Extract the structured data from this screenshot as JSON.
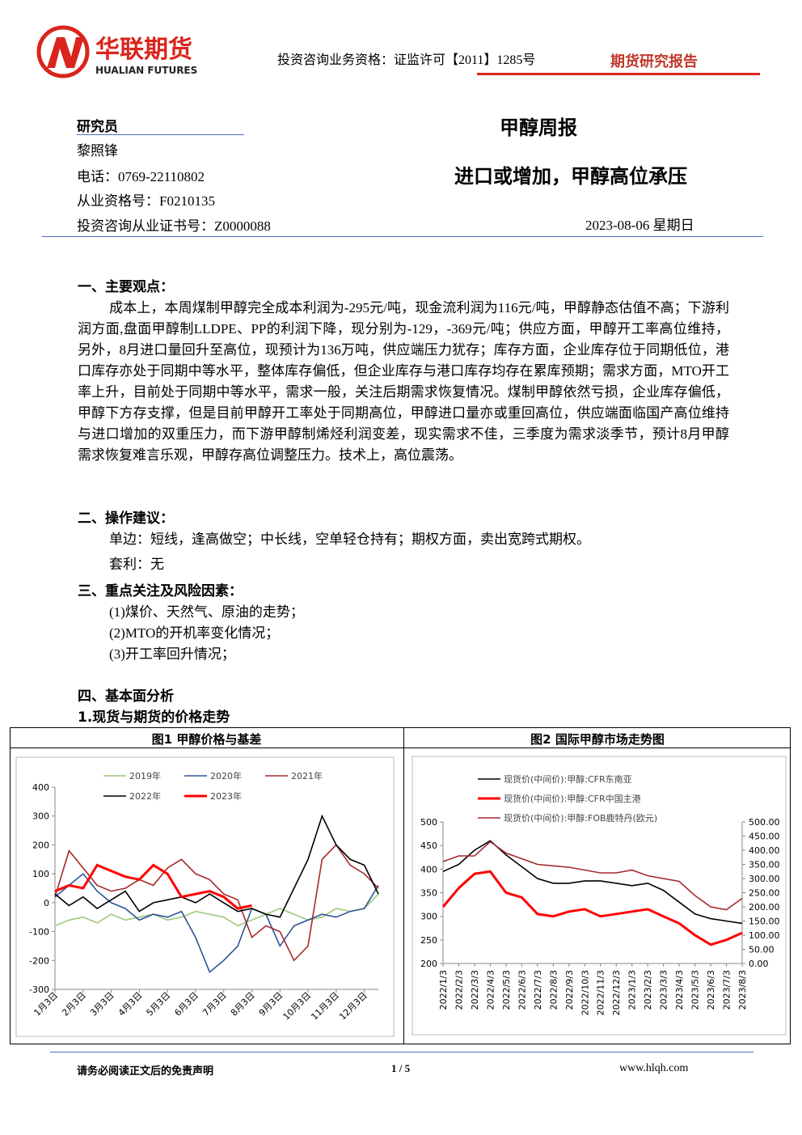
{
  "header": {
    "company": "华联期货",
    "company_en": "HUALIAN FUTURES",
    "license": "投资咨询业务资格：证监许可【2011】1285号",
    "report_type": "期货研究报告"
  },
  "researcher": {
    "heading": "研究员",
    "name": "黎照锋",
    "phone": "电话：0769-22110802",
    "qualification": "从业资格号：F0210135",
    "certificate": "投资咨询从业证书号：Z0000088"
  },
  "title": "甲醇周报",
  "subtitle": "进口或增加，甲醇高位承压",
  "date": "2023-08-06 星期日",
  "sections": [
    {
      "heading": "一、主要观点：",
      "paragraphs": [
        "成本上，本周煤制甲醇完全成本利润为-295元/吨，现金流利润为116元/吨，甲醇静态估值不高；下游利润方面,盘面甲醇制LLDPE、PP的利润下降，现分别为-129，-369元/吨；供应方面，甲醇开工率高位维持，另外，8月进口量回升至高位，现预计为136万吨，供应端压力犹存；库存方面，企业库存位于同期低位，港口库存亦处于同期中等水平，整体库存偏低，但企业库存与港口库存均存在累库预期；需求方面，MTO开工率上升，目前处于同期中等水平，需求一般，关注后期需求恢复情况。煤制甲醇依然亏损，企业库存偏低，甲醇下方存支撑，但是目前甲醇开工率处于同期高位，甲醇进口量亦或重回高位，供应端面临国产高位维持与进口增加的双重压力，而下游甲醇制烯烃利润变差，现实需求不佳，三季度为需求淡季节，预计8月甲醇需求恢复难言乐观，甲醇存高位调整压力。技术上，高位震荡。"
      ]
    },
    {
      "heading": "二、操作建议：",
      "paragraphs": [
        "单边：短线，逢高做空；中长线，空单轻仓持有；期权方面，卖出宽跨式期权。",
        "套利：无"
      ]
    },
    {
      "heading": "三、重点关注及风险因素：",
      "paragraphs": [
        "(1)煤价、天然气、原油的走势；",
        "(2)MTO的开机率变化情况；",
        "(3)开工率回升情况；"
      ]
    },
    {
      "heading": "四、基本面分析",
      "paragraphs": [
        "1.现货与期货的价格走势"
      ]
    }
  ],
  "chart_data": [
    {
      "type": "line",
      "title": "图1 甲醇价格与基差",
      "categories": [
        "1月3日",
        null,
        "2月3日",
        null,
        "3月3日",
        null,
        "4月3日",
        null,
        "5月3日",
        null,
        "6月3日",
        null,
        "7月3日",
        null,
        "8月3日",
        null,
        "9月3日",
        null,
        "10月3日",
        null,
        "11月3日",
        null,
        "12月3日",
        null
      ],
      "ylim": [
        -300,
        400
      ],
      "yticks": [
        -300,
        -200,
        -100,
        0,
        100,
        200,
        300,
        400
      ],
      "series": [
        {
          "name": "2019年",
          "color": "#9cc97e",
          "values": [
            -80,
            -60,
            -50,
            -70,
            -40,
            -60,
            -50,
            -40,
            -60,
            -50,
            -30,
            -40,
            -50,
            -80,
            -60,
            -40,
            -20,
            -40,
            -60,
            -50,
            -20,
            -30,
            -20,
            30
          ]
        },
        {
          "name": "2020年",
          "color": "#2f5597",
          "values": [
            20,
            60,
            100,
            40,
            0,
            -20,
            -60,
            -40,
            -50,
            -30,
            -120,
            -240,
            -200,
            -150,
            -20,
            -40,
            -150,
            -80,
            -60,
            -40,
            -50,
            -30,
            -20,
            60
          ]
        },
        {
          "name": "2021年",
          "color": "#a52a2a",
          "values": [
            20,
            180,
            120,
            60,
            40,
            50,
            80,
            60,
            120,
            150,
            100,
            80,
            30,
            10,
            -120,
            -80,
            -100,
            -200,
            -150,
            150,
            200,
            130,
            100,
            50
          ]
        },
        {
          "name": "2022年",
          "color": "#000000",
          "values": [
            30,
            -10,
            20,
            -20,
            10,
            40,
            -30,
            0,
            10,
            20,
            0,
            30,
            0,
            -30,
            -20,
            -40,
            -50,
            50,
            150,
            300,
            200,
            150,
            130,
            30
          ]
        },
        {
          "name": "2023年",
          "color": "#ff0000",
          "values": [
            40,
            60,
            50,
            130,
            110,
            90,
            80,
            130,
            100,
            20,
            30,
            40,
            20,
            -20,
            -10,
            null,
            null,
            null,
            null,
            null,
            null,
            null,
            null,
            null
          ]
        }
      ]
    },
    {
      "type": "line",
      "title": "图2 国际甲醇市场走势图",
      "categories": [
        "2022/1/3",
        "2022/2/3",
        "2022/3/3",
        "2022/4/3",
        "2022/5/3",
        "2022/6/3",
        "2022/7/3",
        "2022/8/3",
        "2022/9/3",
        "2022/10/3",
        "2022/11/3",
        "2022/12/3",
        "2023/1/3",
        "2023/2/3",
        "2023/3/3",
        "2023/4/3",
        "2023/5/3",
        "2023/6/3",
        "2023/7/3",
        "2023/8/3"
      ],
      "ylim": [
        200,
        500
      ],
      "yticks": [
        200,
        250,
        300,
        350,
        400,
        450,
        500
      ],
      "y2lim": [
        0,
        500
      ],
      "y2ticks": [
        {
          "value": 0,
          "label": "0.00"
        },
        {
          "value": 50,
          "label": "50.00"
        },
        {
          "value": 100,
          "label": "100.00"
        },
        {
          "value": 150,
          "label": "150.00"
        },
        {
          "value": 200,
          "label": "200.00"
        },
        {
          "value": 250,
          "label": "250.00"
        },
        {
          "value": 300,
          "label": "300.00"
        },
        {
          "value": 350,
          "label": "350.00"
        },
        {
          "value": 400,
          "label": "400.00"
        },
        {
          "value": 450,
          "label": "450.00"
        },
        {
          "value": 500,
          "label": "500.00"
        }
      ],
      "series": [
        {
          "name": "现货价(中间价):甲醇:CFR东南亚",
          "color": "#000000",
          "values": [
            395,
            410,
            440,
            460,
            430,
            405,
            380,
            370,
            370,
            375,
            375,
            370,
            365,
            370,
            355,
            330,
            305,
            295,
            290,
            285
          ]
        },
        {
          "name": "现货价(中间价):甲醇:CFR中国主港",
          "color": "#ff0000",
          "values": [
            320,
            360,
            390,
            395,
            350,
            340,
            305,
            300,
            310,
            315,
            300,
            305,
            310,
            315,
            300,
            285,
            260,
            240,
            250,
            265
          ]
        },
        {
          "name": "现货价(中间价):甲醇:FOB鹿特丹(欧元)",
          "color": "#a52a2a",
          "axis": "y2",
          "values": [
            360,
            380,
            380,
            430,
            390,
            370,
            350,
            345,
            340,
            330,
            320,
            320,
            330,
            310,
            300,
            290,
            240,
            200,
            190,
            230
          ]
        }
      ]
    }
  ],
  "footer": {
    "disclaimer": "请务必阅读正文后的免责声明",
    "page": "1 / 5",
    "website": "www.hlqh.com"
  }
}
